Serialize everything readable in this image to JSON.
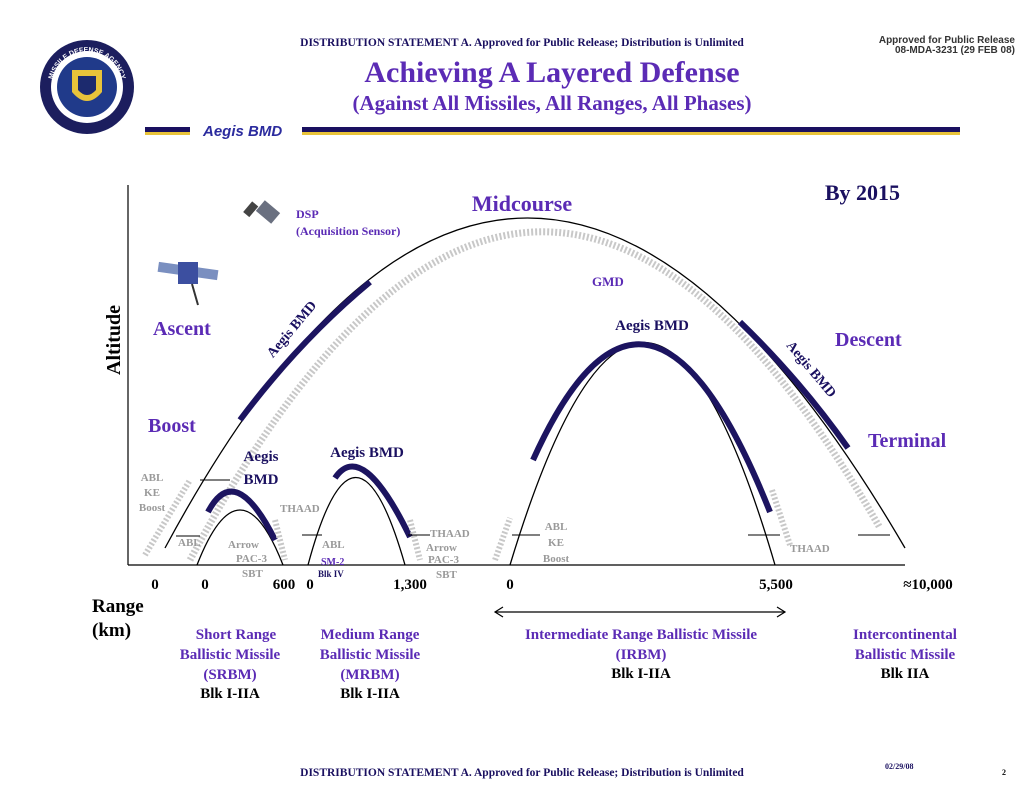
{
  "header": {
    "distribution": "DISTRIBUTION STATEMENT A.  Approved for Public Release; Distribution is Unlimited",
    "approval": [
      "Approved for Public Release",
      "08-MDA-3231 (29 FEB 08)"
    ],
    "logo": "MISSILE DEFENSE AGENCY",
    "title": "Achieving A Layered Defense",
    "subtitle": "(Against All Missiles, All Ranges, All Phases)",
    "banner": "Aegis BMD"
  },
  "diagram": {
    "year": "By 2015",
    "altitude": "Altitude",
    "phases": {
      "midcourse": "Midcourse",
      "ascent": "Ascent",
      "boost": "Boost",
      "descent": "Descent",
      "terminal": "Terminal"
    },
    "sensor": [
      "DSP",
      "(Acquisition Sensor)"
    ],
    "gmd": "GMD",
    "aegis_ascent": "Aegis BMD",
    "aegis_descent": "Aegis BMD",
    "aegis_irbm": "Aegis BMD",
    "aegis_mrbm": "Aegis BMD",
    "aegis_srbm": [
      "Aegis",
      "BMD"
    ],
    "srbm_systems": {
      "left": [
        "ABL",
        "KE",
        "Boost"
      ],
      "abl": "ABL",
      "arrow": "Arrow",
      "pac3": "PAC-3",
      "sbt": "SBT",
      "thaad": "THAAD"
    },
    "mrbm_systems": {
      "abl": "ABL",
      "sm2": "SM-2",
      "blk": "Blk IV",
      "thaad": "THAAD",
      "arrow": "Arrow",
      "pac3": "PAC-3",
      "sbt": "SBT"
    },
    "irbm_systems": {
      "abl": [
        "ABL",
        "KE",
        "Boost"
      ],
      "thaad": "THAAD"
    },
    "range": {
      "label": [
        "Range",
        "(km)"
      ],
      "ticks": [
        "0",
        "0",
        "600",
        "0",
        "1,300",
        "0",
        "5,500",
        "≈10,000"
      ]
    },
    "classes": [
      {
        "lines": [
          "Short Range",
          "Ballistic Missile",
          "(SRBM)"
        ],
        "interceptor": "Blk I-IIA"
      },
      {
        "lines": [
          "Medium Range",
          "Ballistic Missile",
          "(MRBM)"
        ],
        "interceptor": "Blk I-IIA"
      },
      {
        "lines": [
          "Intermediate Range Ballistic Missile",
          "(IRBM)"
        ],
        "interceptor": "Blk I-IIA"
      },
      {
        "lines": [
          "Intercontinental",
          "Ballistic Missile"
        ],
        "interceptor": "Blk IIA"
      }
    ]
  },
  "footer": {
    "distribution": "DISTRIBUTION STATEMENT A.  Approved for Public Release; Distribution is Unlimited",
    "date": "02/29/08",
    "page": "2"
  }
}
